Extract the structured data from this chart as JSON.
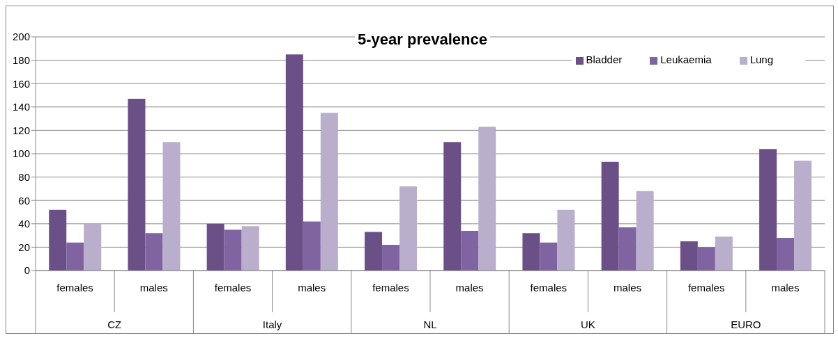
{
  "chart_data": {
    "type": "bar",
    "title": "5-year prevalence",
    "categories": [
      "females",
      "males",
      "females",
      "males",
      "females",
      "males",
      "females",
      "males",
      "females",
      "males"
    ],
    "annotations": [
      "CZ",
      "Italy",
      "NL",
      "UK",
      "EURO"
    ],
    "series": [
      {
        "name": "Bladder",
        "color": "#6b5088",
        "values": [
          52,
          147,
          40,
          185,
          33,
          110,
          32,
          93,
          25,
          104
        ]
      },
      {
        "name": "Leukaemia",
        "color": "#8064a2",
        "values": [
          24,
          32,
          35,
          42,
          22,
          34,
          24,
          37,
          20,
          28
        ]
      },
      {
        "name": "Lung",
        "color": "#b9aecb",
        "values": [
          40,
          110,
          38,
          135,
          72,
          123,
          52,
          68,
          29,
          94
        ]
      }
    ],
    "ylim": [
      0,
      200
    ],
    "yticks": [
      0,
      20,
      40,
      60,
      80,
      100,
      120,
      140,
      160,
      180,
      200
    ],
    "grid": "y",
    "legend": "top right"
  }
}
